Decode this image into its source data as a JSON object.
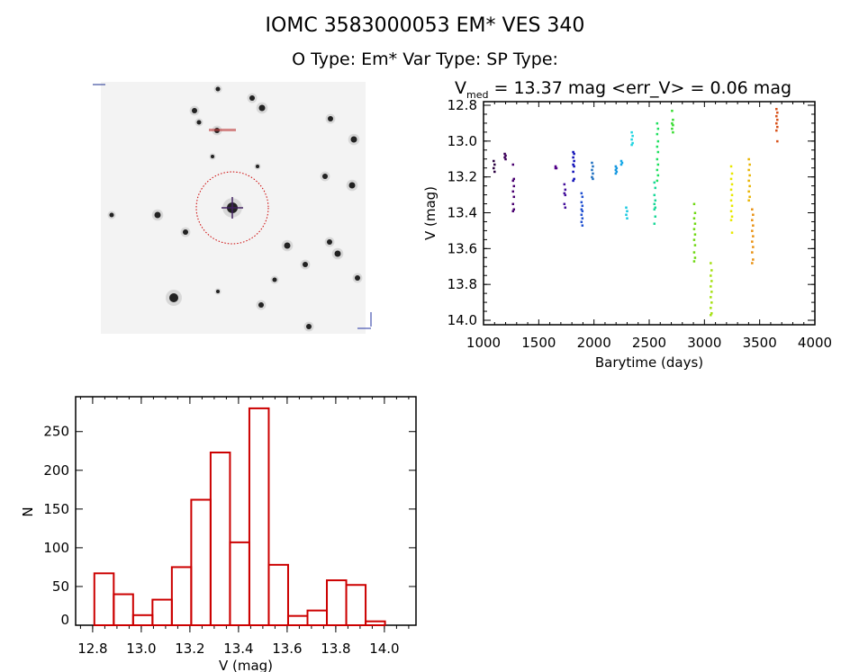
{
  "header": {
    "title": "IOMC 3583000053    EM* VES  340",
    "subtitle": "O Type: Em*  Var Type:   SP Type:"
  },
  "image_panel": {
    "description_free": true
  },
  "chart_data": [
    {
      "type": "scatter",
      "title_prefix": "V",
      "title_sub": "med",
      "title_rest": " = 13.37 mag <err_V> = 0.06 mag",
      "xlabel": "Barytime (days)",
      "ylabel": "V (mag)",
      "xlim": [
        1000,
        4000
      ],
      "ylim": [
        12.8,
        14.0
      ],
      "y_inverted": true,
      "xticks": [
        "1000",
        "1500",
        "2000",
        "2500",
        "3000",
        "3500",
        "4000"
      ],
      "yticks": [
        "12.8",
        "13.0",
        "13.2",
        "13.4",
        "13.6",
        "13.8",
        "14.0"
      ],
      "groups": [
        {
          "t": 1090,
          "v": [
            13.11,
            13.13,
            13.15,
            13.17
          ],
          "color": "#2a0040"
        },
        {
          "t": 1190,
          "v": [
            13.07,
            13.08,
            13.09,
            13.1
          ],
          "color": "#3c005a"
        },
        {
          "t": 1265,
          "v": [
            13.13,
            13.21,
            13.22,
            13.25,
            13.28,
            13.31,
            13.35,
            13.38,
            13.39
          ],
          "color": "#4a0070"
        },
        {
          "t": 1650,
          "v": [
            13.14,
            13.15,
            13.15
          ],
          "color": "#520088"
        },
        {
          "t": 1730,
          "v": [
            13.24,
            13.27,
            13.29,
            13.3,
            13.35,
            13.37
          ],
          "color": "#44109c"
        },
        {
          "t": 1810,
          "v": [
            13.06,
            13.07,
            13.09,
            13.11,
            13.13,
            13.14,
            13.17,
            13.21,
            13.22
          ],
          "color": "#1010b8"
        },
        {
          "t": 1885,
          "v": [
            13.29,
            13.31,
            13.34,
            13.36,
            13.38,
            13.39,
            13.41,
            13.43,
            13.45,
            13.47
          ],
          "color": "#2050d0"
        },
        {
          "t": 1980,
          "v": [
            13.12,
            13.14,
            13.16,
            13.18,
            13.2,
            13.21
          ],
          "color": "#2070c0"
        },
        {
          "t": 2195,
          "v": [
            13.14,
            13.15,
            13.16,
            13.17,
            13.18
          ],
          "color": "#1698e0"
        },
        {
          "t": 2245,
          "v": [
            13.11,
            13.12,
            13.13
          ],
          "color": "#14a8e8"
        },
        {
          "t": 2290,
          "v": [
            13.37,
            13.39,
            13.41,
            13.43
          ],
          "color": "#18c8e0"
        },
        {
          "t": 2340,
          "v": [
            12.95,
            12.97,
            12.99,
            13.01,
            13.02
          ],
          "color": "#20d4e0"
        },
        {
          "t": 2545,
          "v": [
            13.23,
            13.26,
            13.3,
            13.33,
            13.35,
            13.37,
            13.38,
            13.42,
            13.46
          ],
          "color": "#18d898"
        },
        {
          "t": 2570,
          "v": [
            12.9,
            12.93,
            12.96,
            13.0,
            13.03,
            13.06,
            13.1,
            13.13,
            13.16,
            13.19,
            13.22
          ],
          "color": "#20e060"
        },
        {
          "t": 2705,
          "v": [
            12.83,
            12.88,
            12.9,
            12.91,
            12.93,
            12.95
          ],
          "color": "#38dc30"
        },
        {
          "t": 2905,
          "v": [
            13.35,
            13.4,
            13.43,
            13.46,
            13.49,
            13.52,
            13.55,
            13.58,
            13.62,
            13.65,
            13.67
          ],
          "color": "#6ed810"
        },
        {
          "t": 3055,
          "v": [
            13.68,
            13.72,
            13.75,
            13.78,
            13.81,
            13.84,
            13.87,
            13.9,
            13.93,
            13.96,
            13.97
          ],
          "color": "#a4e010"
        },
        {
          "t": 3240,
          "v": [
            13.14,
            13.18,
            13.21,
            13.24,
            13.27,
            13.3,
            13.33,
            13.36,
            13.39,
            13.42,
            13.44,
            13.51
          ],
          "color": "#e8e800"
        },
        {
          "t": 3400,
          "v": [
            13.1,
            13.13,
            13.16,
            13.19,
            13.22,
            13.25,
            13.28,
            13.31,
            13.33
          ],
          "color": "#e8b400"
        },
        {
          "t": 3430,
          "v": [
            13.38,
            13.41,
            13.44,
            13.47,
            13.5,
            13.53,
            13.56,
            13.59,
            13.62,
            13.66,
            13.68
          ],
          "color": "#e89010"
        },
        {
          "t": 3650,
          "v": [
            12.82,
            12.84,
            12.86,
            12.88,
            12.9,
            12.92,
            12.94,
            13.0
          ],
          "color": "#d85018"
        }
      ]
    },
    {
      "type": "bar",
      "xlabel": "V (mag)",
      "ylabel": "N",
      "xlim": [
        12.73,
        14.13
      ],
      "ylim": [
        0,
        295
      ],
      "xticks": [
        "12.8",
        "13.0",
        "13.2",
        "13.4",
        "13.6",
        "13.8",
        "14.0"
      ],
      "yticks": [
        "0",
        "50",
        "100",
        "150",
        "200",
        "250"
      ],
      "bin_start": 12.807,
      "bin_width": 0.0797,
      "values": [
        67,
        40,
        13,
        33,
        75,
        162,
        223,
        107,
        280,
        78,
        12,
        19,
        58,
        52,
        5
      ],
      "color": "#cc0000"
    }
  ]
}
